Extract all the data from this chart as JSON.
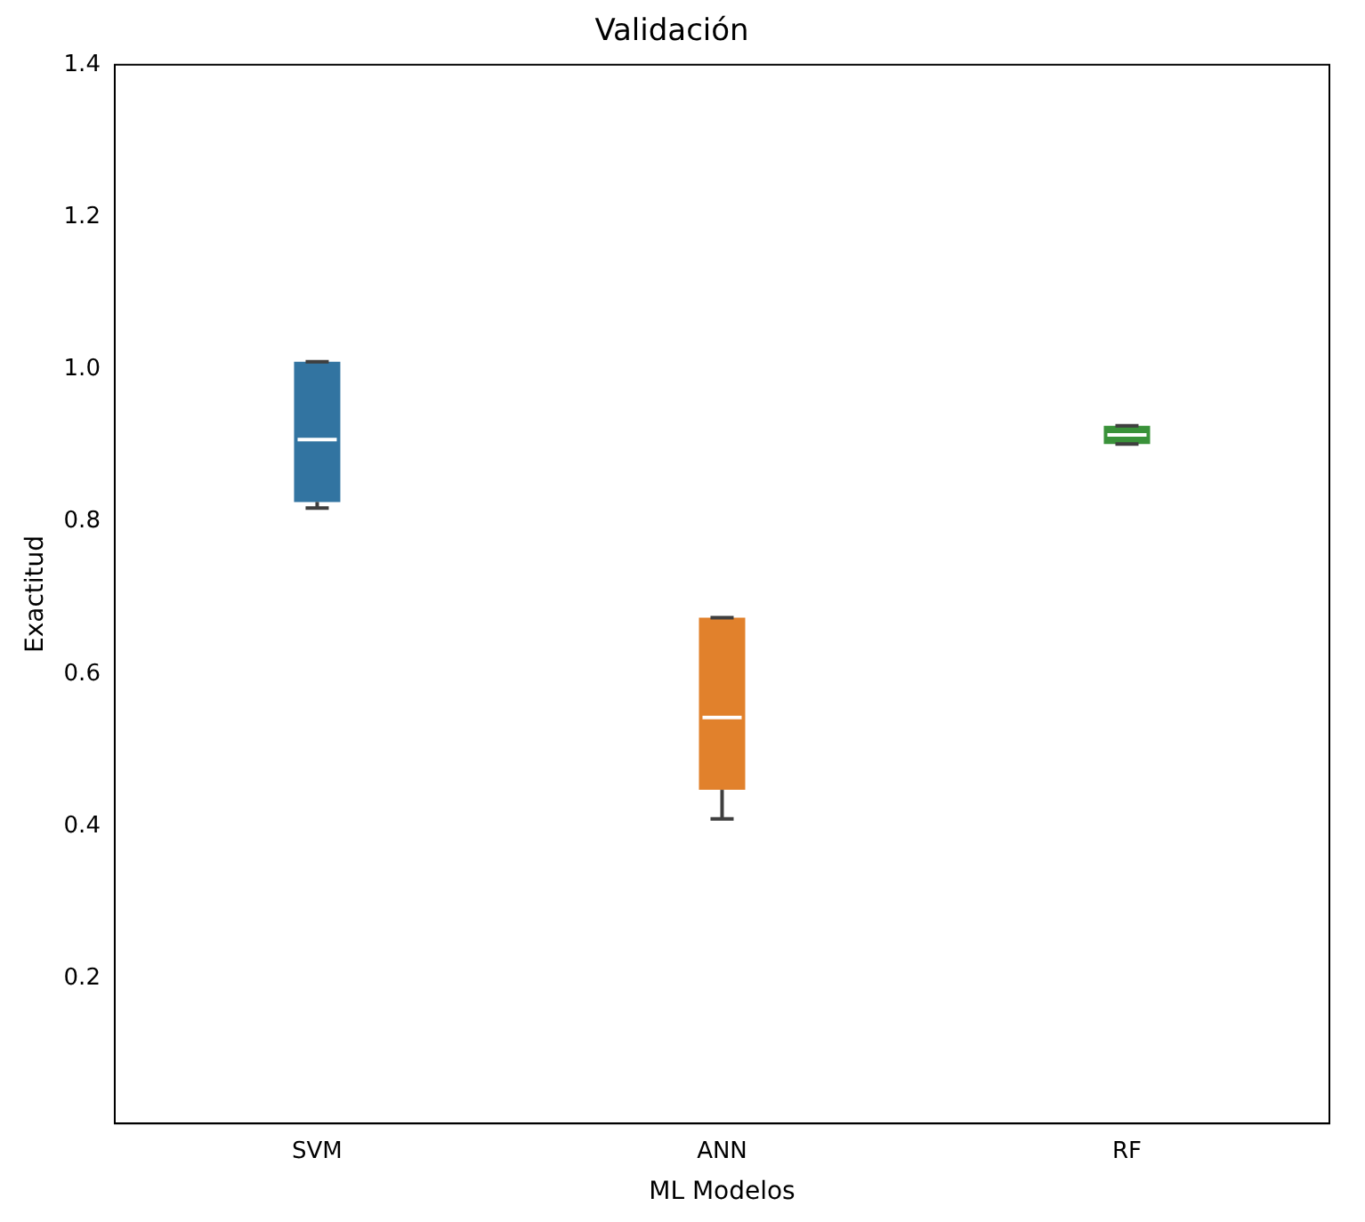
{
  "chart_data": {
    "type": "box",
    "title": "Validación",
    "xlabel": "ML Modelos",
    "ylabel": "Exactitud",
    "categories": [
      "SVM",
      "ANN",
      "RF"
    ],
    "colors": [
      "#3274a1",
      "#e1812c",
      "#3a923a"
    ],
    "boxes": [
      {
        "low": 0.818,
        "q1": 0.826,
        "median": 0.908,
        "q3": 1.01,
        "high": 1.01
      },
      {
        "low": 0.41,
        "q1": 0.448,
        "median": 0.543,
        "q3": 0.674,
        "high": 0.674
      },
      {
        "low": 0.902,
        "q1": 0.902,
        "median": 0.914,
        "q3": 0.926,
        "high": 0.926
      }
    ],
    "ylim": [
      0.01,
      1.4
    ],
    "yticks": [
      0.2,
      0.4,
      0.6,
      0.8,
      {
        "value": 1,
        "label": "1.0"
      },
      1.2,
      1.4
    ],
    "grid": false,
    "legend": false
  }
}
